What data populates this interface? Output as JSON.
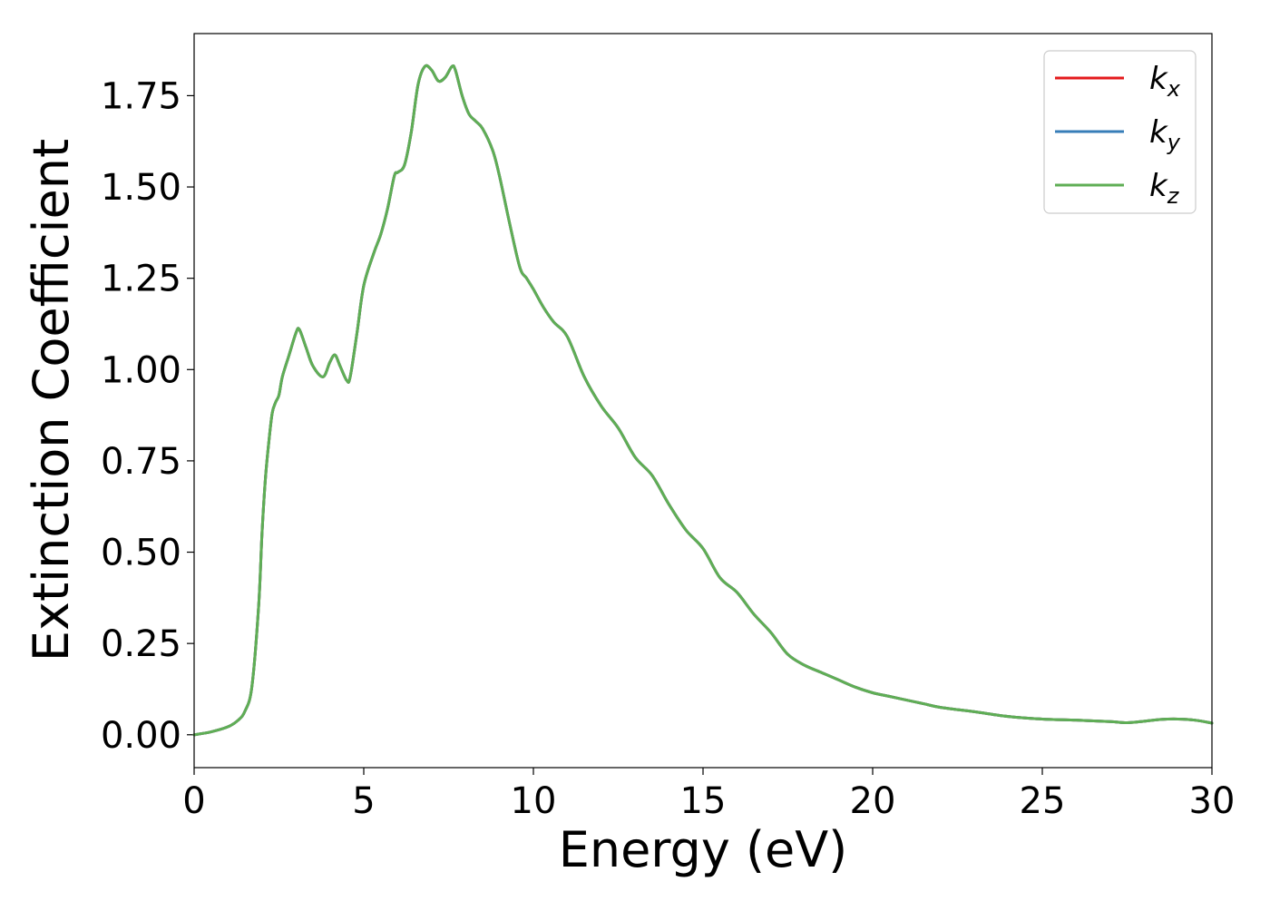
{
  "chart_data": {
    "type": "line",
    "title": "",
    "xlabel": "Energy (eV)",
    "ylabel": "Extinction Coefficient",
    "xlim": [
      0,
      30
    ],
    "ylim": [
      -0.09,
      1.92
    ],
    "x_ticks": [
      0,
      5,
      10,
      15,
      20,
      25,
      30
    ],
    "x_tick_labels": [
      "0",
      "5",
      "10",
      "15",
      "20",
      "25",
      "30"
    ],
    "y_ticks": [
      0,
      0.25,
      0.5,
      0.75,
      1.0,
      1.25,
      1.5,
      1.75
    ],
    "y_tick_labels": [
      "0.00",
      "0.25",
      "0.50",
      "0.75",
      "1.00",
      "1.25",
      "1.50",
      "1.75"
    ],
    "grid": false,
    "legend_position": "top-right",
    "colors": [
      "#e41a1c",
      "#377eb8",
      "#5fae55"
    ],
    "x": [
      0,
      0.5,
      1.0,
      1.3,
      1.5,
      1.7,
      1.9,
      2.0,
      2.1,
      2.2,
      2.3,
      2.4,
      2.5,
      2.6,
      2.8,
      3.0,
      3.1,
      3.3,
      3.5,
      3.8,
      4.0,
      4.15,
      4.3,
      4.5,
      4.6,
      4.8,
      5.0,
      5.3,
      5.5,
      5.7,
      5.9,
      6.0,
      6.2,
      6.4,
      6.6,
      6.8,
      7.0,
      7.2,
      7.4,
      7.6,
      7.7,
      7.9,
      8.1,
      8.3,
      8.5,
      8.8,
      9.0,
      9.3,
      9.6,
      9.8,
      10.0,
      10.3,
      10.6,
      11.0,
      11.5,
      12.0,
      12.5,
      13.0,
      13.5,
      14.0,
      14.5,
      15.0,
      15.5,
      16.0,
      16.5,
      17.0,
      17.5,
      18.0,
      18.5,
      19.0,
      19.5,
      20.0,
      20.5,
      21.0,
      21.5,
      22.0,
      23.0,
      24.0,
      25.0,
      26.0,
      27.0,
      27.5,
      28.0,
      28.5,
      29.0,
      29.5,
      30.0
    ],
    "series": [
      {
        "name": "k",
        "name_sub": "x",
        "values": [
          0.0,
          0.008,
          0.022,
          0.04,
          0.065,
          0.13,
          0.35,
          0.55,
          0.7,
          0.8,
          0.88,
          0.91,
          0.93,
          0.98,
          1.04,
          1.1,
          1.11,
          1.06,
          1.01,
          0.98,
          1.02,
          1.04,
          1.01,
          0.97,
          0.98,
          1.1,
          1.23,
          1.32,
          1.37,
          1.44,
          1.53,
          1.54,
          1.56,
          1.65,
          1.78,
          1.83,
          1.82,
          1.79,
          1.8,
          1.83,
          1.82,
          1.75,
          1.7,
          1.68,
          1.66,
          1.6,
          1.53,
          1.4,
          1.28,
          1.25,
          1.22,
          1.17,
          1.13,
          1.09,
          0.98,
          0.9,
          0.84,
          0.76,
          0.71,
          0.63,
          0.56,
          0.51,
          0.43,
          0.39,
          0.33,
          0.28,
          0.22,
          0.19,
          0.17,
          0.15,
          0.13,
          0.115,
          0.105,
          0.095,
          0.085,
          0.075,
          0.063,
          0.05,
          0.043,
          0.04,
          0.036,
          0.033,
          0.037,
          0.042,
          0.043,
          0.04,
          0.032
        ]
      },
      {
        "name": "k",
        "name_sub": "y",
        "values": [
          0.0,
          0.008,
          0.022,
          0.04,
          0.065,
          0.13,
          0.35,
          0.55,
          0.7,
          0.8,
          0.88,
          0.91,
          0.93,
          0.98,
          1.04,
          1.1,
          1.11,
          1.06,
          1.01,
          0.98,
          1.02,
          1.04,
          1.01,
          0.97,
          0.98,
          1.1,
          1.23,
          1.32,
          1.37,
          1.44,
          1.53,
          1.54,
          1.56,
          1.65,
          1.78,
          1.83,
          1.82,
          1.79,
          1.8,
          1.83,
          1.82,
          1.75,
          1.7,
          1.68,
          1.66,
          1.6,
          1.53,
          1.4,
          1.28,
          1.25,
          1.22,
          1.17,
          1.13,
          1.09,
          0.98,
          0.9,
          0.84,
          0.76,
          0.71,
          0.63,
          0.56,
          0.51,
          0.43,
          0.39,
          0.33,
          0.28,
          0.22,
          0.19,
          0.17,
          0.15,
          0.13,
          0.115,
          0.105,
          0.095,
          0.085,
          0.075,
          0.063,
          0.05,
          0.043,
          0.04,
          0.036,
          0.033,
          0.037,
          0.042,
          0.043,
          0.04,
          0.032
        ]
      },
      {
        "name": "k",
        "name_sub": "z",
        "values": [
          0.0,
          0.008,
          0.022,
          0.04,
          0.065,
          0.13,
          0.35,
          0.55,
          0.7,
          0.8,
          0.88,
          0.91,
          0.93,
          0.98,
          1.04,
          1.1,
          1.11,
          1.06,
          1.01,
          0.98,
          1.02,
          1.04,
          1.01,
          0.97,
          0.98,
          1.1,
          1.23,
          1.32,
          1.37,
          1.44,
          1.53,
          1.54,
          1.56,
          1.65,
          1.78,
          1.83,
          1.82,
          1.79,
          1.8,
          1.83,
          1.82,
          1.75,
          1.7,
          1.68,
          1.66,
          1.6,
          1.53,
          1.4,
          1.28,
          1.25,
          1.22,
          1.17,
          1.13,
          1.09,
          0.98,
          0.9,
          0.84,
          0.76,
          0.71,
          0.63,
          0.56,
          0.51,
          0.43,
          0.39,
          0.33,
          0.28,
          0.22,
          0.19,
          0.17,
          0.15,
          0.13,
          0.115,
          0.105,
          0.095,
          0.085,
          0.075,
          0.063,
          0.05,
          0.043,
          0.04,
          0.036,
          0.033,
          0.037,
          0.042,
          0.043,
          0.04,
          0.032
        ]
      }
    ]
  }
}
